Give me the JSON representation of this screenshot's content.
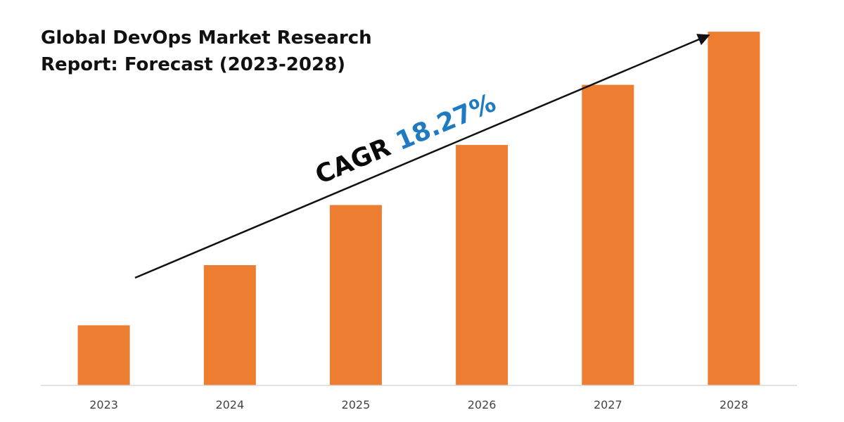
{
  "chart_data": {
    "type": "bar",
    "title_lines": [
      "Global DevOps Market Research",
      "Report: Forecast (2023-2028)"
    ],
    "categories": [
      "2023",
      "2024",
      "2025",
      "2026",
      "2027",
      "2028"
    ],
    "values": [
      0.17,
      0.34,
      0.51,
      0.68,
      0.85,
      1.0
    ],
    "bar_color": "#ed7d31",
    "ylim": [
      0,
      1.05
    ],
    "xlabel": "",
    "ylabel": "",
    "y_axis_visible": false,
    "grid": false,
    "annotation": {
      "prefix": "CAGR ",
      "value": "18.27%",
      "prefix_color": "#0a0a0a",
      "value_color": "#1f7bc1",
      "arrow": "trend-arrow"
    }
  }
}
